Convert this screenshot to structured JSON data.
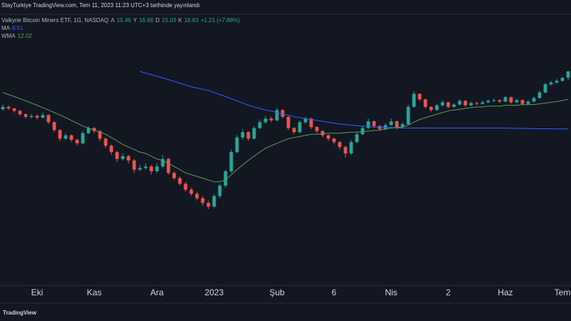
{
  "header": "StayTurkiye TradingView.com, Tem 11, 2023 11:23 UTC+3 tarihinde yayınlandı",
  "footer": "TradingView",
  "chart_data": {
    "type": "candlestick",
    "title": "Valkyrie Bitcoin Miners ETF, 1G, NASDAQ",
    "ohlc_labels": [
      "A",
      "Y",
      "D",
      "K"
    ],
    "change": "+1.21 (+7.86%)",
    "up_color": "#26a69a",
    "down_color": "#ef5350",
    "log_y": true,
    "ylim": [
      1.38,
      32.3
    ],
    "xlim": [
      -0.5,
      99.5
    ],
    "xticks": [
      {
        "value": 6,
        "label": "Eki"
      },
      {
        "value": 16,
        "label": "Kas"
      },
      {
        "value": 27,
        "label": "Ara"
      },
      {
        "value": 37,
        "label": "2023"
      },
      {
        "value": 48,
        "label": "Şub"
      },
      {
        "value": 58,
        "label": "6"
      },
      {
        "value": 68,
        "label": "Nis"
      },
      {
        "value": 78,
        "label": "2"
      },
      {
        "value": 88,
        "label": "Haz"
      },
      {
        "value": 98,
        "label": "Tem"
      }
    ],
    "open": [
      10.7,
      11.0,
      10.8,
      10.5,
      10.1,
      9.8,
      9.9,
      9.7,
      10.0,
      9.2,
      8.4,
      7.6,
      7.9,
      7.5,
      7.2,
      8.1,
      8.6,
      8.3,
      7.6,
      7.0,
      6.5,
      6.0,
      6.2,
      5.9,
      5.3,
      5.4,
      5.5,
      5.2,
      5.5,
      6.0,
      5.1,
      4.8,
      4.5,
      4.2,
      4.0,
      3.8,
      3.6,
      3.45,
      3.9,
      4.4,
      5.2,
      6.5,
      7.7,
      8.2,
      7.6,
      8.6,
      9.2,
      9.6,
      9.4,
      10.6,
      9.8,
      8.6,
      8.2,
      9.2,
      9.6,
      8.7,
      8.3,
      7.9,
      7.6,
      7.3,
      6.9,
      6.4,
      7.3,
      8.0,
      8.6,
      9.3,
      8.8,
      8.5,
      8.9,
      9.3,
      8.7,
      9.0,
      11.0,
      12.8,
      12.0,
      11.0,
      10.6,
      11.2,
      11.6,
      11.0,
      11.3,
      11.8,
      11.2,
      11.5,
      11.4,
      11.6,
      11.8,
      11.9,
      11.7,
      12.3,
      11.6,
      11.9,
      11.4,
      11.7,
      12.2,
      13.0,
      14.3,
      14.6,
      14.9,
      15.46
    ],
    "high": [
      11.3,
      11.2,
      10.9,
      10.6,
      10.2,
      10.1,
      10.1,
      10.3,
      10.1,
      9.3,
      8.5,
      8.1,
      8.0,
      7.6,
      8.3,
      8.8,
      8.7,
      8.4,
      7.7,
      7.1,
      6.6,
      6.4,
      6.3,
      6.0,
      5.6,
      5.7,
      5.6,
      5.7,
      6.3,
      6.1,
      5.2,
      4.9,
      4.6,
      4.3,
      4.1,
      3.9,
      3.7,
      4.0,
      4.5,
      5.3,
      6.7,
      7.9,
      8.5,
      8.3,
      8.8,
      9.5,
      9.9,
      9.8,
      10.9,
      10.7,
      9.9,
      8.7,
      9.4,
      9.8,
      9.7,
      8.8,
      8.4,
      8.0,
      7.7,
      7.4,
      7.0,
      7.5,
      8.2,
      8.8,
      9.6,
      9.4,
      8.9,
      9.1,
      9.6,
      9.4,
      9.2,
      11.3,
      13.2,
      12.9,
      12.1,
      11.1,
      11.4,
      11.9,
      11.7,
      11.5,
      12.0,
      11.9,
      11.7,
      11.7,
      11.8,
      12.0,
      12.1,
      12.0,
      12.5,
      12.4,
      12.1,
      12.0,
      11.9,
      12.4,
      13.3,
      14.6,
      14.9,
      15.2,
      15.6,
      16.66
    ],
    "low": [
      10.5,
      10.6,
      10.3,
      9.9,
      9.6,
      9.6,
      9.5,
      9.6,
      9.0,
      8.2,
      7.4,
      7.5,
      7.3,
      7.0,
      7.1,
      8.0,
      8.1,
      7.4,
      6.8,
      6.3,
      5.8,
      5.9,
      5.7,
      5.1,
      5.2,
      5.3,
      5.0,
      5.1,
      5.4,
      5.0,
      4.7,
      4.4,
      4.1,
      3.9,
      3.7,
      3.5,
      3.35,
      3.4,
      3.8,
      4.3,
      5.1,
      6.4,
      7.5,
      7.4,
      7.5,
      8.5,
      9.0,
      9.2,
      9.3,
      9.6,
      8.4,
      8.0,
      8.1,
      9.0,
      8.5,
      8.1,
      7.7,
      7.4,
      7.1,
      6.7,
      6.1,
      6.3,
      7.2,
      7.9,
      8.5,
      8.6,
      8.3,
      8.4,
      8.8,
      8.5,
      8.6,
      8.9,
      10.9,
      11.8,
      10.8,
      10.4,
      10.5,
      11.0,
      10.8,
      10.9,
      11.2,
      11.0,
      11.1,
      11.2,
      11.3,
      11.5,
      11.6,
      11.5,
      11.6,
      11.4,
      11.5,
      11.2,
      11.3,
      11.6,
      12.1,
      12.9,
      14.1,
      14.4,
      14.7,
      15.03
    ],
    "close": [
      11.0,
      10.8,
      10.5,
      10.1,
      9.8,
      9.9,
      9.7,
      10.0,
      9.2,
      8.4,
      7.6,
      7.9,
      7.5,
      7.2,
      8.1,
      8.6,
      8.3,
      7.6,
      7.0,
      6.5,
      6.0,
      6.2,
      5.9,
      5.3,
      5.4,
      5.5,
      5.2,
      5.5,
      6.0,
      5.1,
      4.8,
      4.5,
      4.2,
      4.0,
      3.8,
      3.6,
      3.45,
      3.9,
      4.4,
      5.2,
      6.5,
      7.7,
      8.2,
      7.6,
      8.6,
      9.2,
      9.6,
      9.4,
      10.6,
      9.8,
      8.6,
      8.2,
      9.2,
      9.6,
      8.7,
      8.3,
      7.9,
      7.6,
      7.3,
      6.9,
      6.4,
      7.3,
      8.0,
      8.6,
      9.3,
      8.8,
      8.5,
      8.9,
      9.3,
      8.7,
      9.0,
      11.0,
      12.8,
      12.0,
      11.0,
      10.6,
      11.2,
      11.6,
      11.0,
      11.3,
      11.8,
      11.2,
      11.5,
      11.4,
      11.6,
      11.8,
      11.9,
      11.7,
      12.3,
      11.6,
      11.9,
      11.4,
      11.7,
      12.2,
      13.0,
      14.3,
      14.6,
      14.9,
      15.42,
      16.63
    ],
    "series": [
      {
        "name": "MA",
        "color": "#2962ff",
        "values": [
          null,
          null,
          null,
          null,
          null,
          null,
          null,
          null,
          null,
          null,
          null,
          null,
          null,
          null,
          null,
          null,
          null,
          null,
          null,
          null,
          null,
          null,
          null,
          null,
          16.6,
          16.3,
          16.0,
          15.7,
          15.4,
          15.1,
          14.8,
          14.5,
          14.2,
          13.9,
          13.7,
          13.5,
          13.3,
          13.0,
          12.7,
          12.4,
          12.1,
          11.8,
          11.5,
          11.2,
          11.0,
          10.8,
          10.6,
          10.5,
          10.3,
          10.1,
          10.0,
          9.8,
          9.7,
          9.6,
          9.5,
          9.4,
          9.3,
          9.2,
          9.1,
          9.0,
          8.95,
          8.9,
          8.85,
          8.8,
          8.75,
          8.7,
          8.7,
          8.65,
          8.65,
          8.6,
          8.6,
          8.6,
          8.6,
          8.6,
          8.6,
          8.6,
          8.6,
          8.6,
          8.6,
          8.6,
          8.6,
          8.6,
          8.6,
          8.6,
          8.6,
          8.6,
          8.6,
          8.6,
          8.6,
          8.58,
          8.57,
          8.56,
          8.55,
          8.54,
          8.53,
          8.53,
          8.52,
          8.52,
          8.51,
          8.51
        ]
      },
      {
        "name": "WMA",
        "color": "#5d9c59",
        "values": [
          13.0,
          12.7,
          12.4,
          12.1,
          11.8,
          11.5,
          11.2,
          10.9,
          10.6,
          10.3,
          10.0,
          9.7,
          9.4,
          9.1,
          8.8,
          8.6,
          8.4,
          8.2,
          8.0,
          7.7,
          7.4,
          7.1,
          6.9,
          6.7,
          6.5,
          6.4,
          6.2,
          6.0,
          5.9,
          5.7,
          5.5,
          5.3,
          5.1,
          5.0,
          4.9,
          4.8,
          4.7,
          4.6,
          4.6,
          4.7,
          5.0,
          5.3,
          5.6,
          5.9,
          6.2,
          6.5,
          6.8,
          7.0,
          7.2,
          7.4,
          7.6,
          7.7,
          7.8,
          7.9,
          8.0,
          8.0,
          8.05,
          8.1,
          8.1,
          8.1,
          8.15,
          8.2,
          8.2,
          8.25,
          8.3,
          8.35,
          8.4,
          8.5,
          8.6,
          8.65,
          8.7,
          8.9,
          9.2,
          9.5,
          9.7,
          9.9,
          10.1,
          10.3,
          10.5,
          10.6,
          10.7,
          10.8,
          10.9,
          11.0,
          11.0,
          11.1,
          11.1,
          11.1,
          11.2,
          11.2,
          11.2,
          11.3,
          11.3,
          11.3,
          11.4,
          11.5,
          11.6,
          11.7,
          11.85,
          12.02
        ]
      }
    ]
  }
}
